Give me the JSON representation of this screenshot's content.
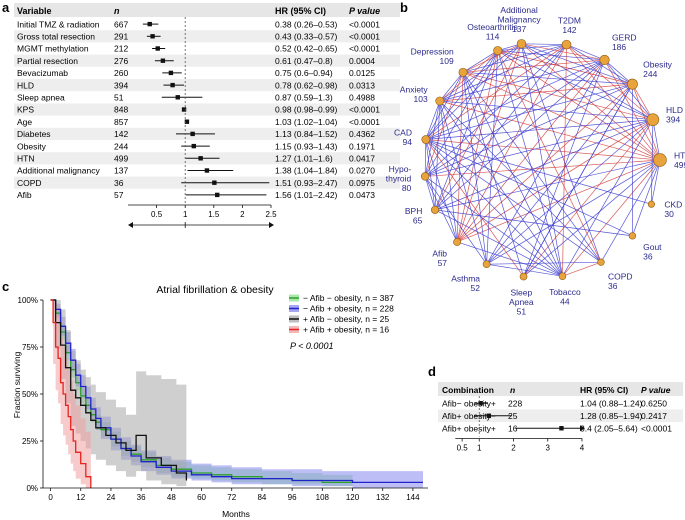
{
  "panels": {
    "a": "a",
    "b": "b",
    "c": "c",
    "d": "d"
  },
  "forest_a": {
    "headers": {
      "variable": "Variable",
      "n": "n",
      "hr": "HR (95% CI)",
      "p": "P value"
    },
    "rows": [
      {
        "variable": "Initial TMZ & radiation",
        "n": "667",
        "hr_text": "0.38 (0.26–0.53)",
        "p": "<0.0001",
        "hr": 0.38,
        "lo": 0.26,
        "hi": 0.53
      },
      {
        "variable": "Gross total resection",
        "n": "291",
        "hr_text": "0.43 (0.33–0.57)",
        "p": "<0.0001",
        "hr": 0.43,
        "lo": 0.33,
        "hi": 0.57
      },
      {
        "variable": "MGMT methylation",
        "n": "212",
        "hr_text": "0.52 (0.42–0.65)",
        "p": "<0.0001",
        "hr": 0.52,
        "lo": 0.42,
        "hi": 0.65
      },
      {
        "variable": "Partial resection",
        "n": "276",
        "hr_text": "0.61 (0.47–0.8)",
        "p": "0.0004",
        "hr": 0.61,
        "lo": 0.47,
        "hi": 0.8
      },
      {
        "variable": "Bevacizumab",
        "n": "260",
        "hr_text": "0.75 (0.6–0.94)",
        "p": "0.0125",
        "hr": 0.75,
        "lo": 0.6,
        "hi": 0.94
      },
      {
        "variable": "HLD",
        "n": "394",
        "hr_text": "0.78 (0.62–0.98)",
        "p": "0.0313",
        "hr": 0.78,
        "lo": 0.62,
        "hi": 0.98
      },
      {
        "variable": "Sleep apnea",
        "n": "51",
        "hr_text": "0.87 (0.59–1.3)",
        "p": "0.4988",
        "hr": 0.87,
        "lo": 0.59,
        "hi": 1.3
      },
      {
        "variable": "KPS",
        "n": "848",
        "hr_text": "0.98 (0.98–0.99)",
        "p": "<0.0001",
        "hr": 0.98,
        "lo": 0.98,
        "hi": 0.99
      },
      {
        "variable": "Age",
        "n": "857",
        "hr_text": "1.03 (1.02–1.04)",
        "p": "<0.0001",
        "hr": 1.03,
        "lo": 1.02,
        "hi": 1.04
      },
      {
        "variable": "Diabetes",
        "n": "142",
        "hr_text": "1.13 (0.84–1.52)",
        "p": "0.4362",
        "hr": 1.13,
        "lo": 0.84,
        "hi": 1.52
      },
      {
        "variable": "Obesity",
        "n": "244",
        "hr_text": "1.15 (0.93–1.43)",
        "p": "0.1971",
        "hr": 1.15,
        "lo": 0.93,
        "hi": 1.43
      },
      {
        "variable": "HTN",
        "n": "499",
        "hr_text": "1.27 (1.01–1.6)",
        "p": "0.0417",
        "hr": 1.27,
        "lo": 1.01,
        "hi": 1.6
      },
      {
        "variable": "Additional malignancy",
        "n": "137",
        "hr_text": "1.38 (1.04–1.84)",
        "p": "0.0270",
        "hr": 1.38,
        "lo": 1.04,
        "hi": 1.84
      },
      {
        "variable": "COPD",
        "n": "36",
        "hr_text": "1.51 (0.93–2.47)",
        "p": "0.0975",
        "hr": 1.51,
        "lo": 0.93,
        "hi": 2.47
      },
      {
        "variable": "Afib",
        "n": "57",
        "hr_text": "1.56 (1.01–2.42)",
        "p": "0.0473",
        "hr": 1.56,
        "lo": 1.01,
        "hi": 2.42
      }
    ],
    "ticks": [
      "0.5",
      "1",
      "1.5",
      "2",
      "2.5"
    ]
  },
  "network_b": {
    "nodes": [
      {
        "label": "Additional Malignancy",
        "lines": [
          "Additional",
          "Malignancy",
          "137"
        ],
        "n": 137
      },
      {
        "label": "T2DM",
        "lines": [
          "T2DM",
          "142"
        ],
        "n": 142
      },
      {
        "label": "GERD",
        "lines": [
          "GERD",
          "186"
        ],
        "n": 186
      },
      {
        "label": "Obesity",
        "lines": [
          "Obesity",
          "244"
        ],
        "n": 244
      },
      {
        "label": "HLD",
        "lines": [
          "HLD",
          "394"
        ],
        "n": 394
      },
      {
        "label": "HTN",
        "lines": [
          "HTN",
          "499"
        ],
        "n": 499
      },
      {
        "label": "CKD",
        "lines": [
          "CKD",
          "30"
        ],
        "n": 30
      },
      {
        "label": "Gout",
        "lines": [
          "Gout",
          "36"
        ],
        "n": 36
      },
      {
        "label": "COPD",
        "lines": [
          "COPD",
          "36"
        ],
        "n": 36
      },
      {
        "label": "Tobacco",
        "lines": [
          "Tobacco",
          "44"
        ],
        "n": 44
      },
      {
        "label": "Sleep Apnea",
        "lines": [
          "Sleep",
          "Apnea",
          "51"
        ],
        "n": 51
      },
      {
        "label": "Asthma",
        "lines": [
          "Asthma",
          "52"
        ],
        "n": 52
      },
      {
        "label": "Afib",
        "lines": [
          "Afib",
          "57"
        ],
        "n": 57
      },
      {
        "label": "BPH",
        "lines": [
          "BPH",
          "65"
        ],
        "n": 65
      },
      {
        "label": "Hypothyroid",
        "lines": [
          "Hypo-",
          "thyroid",
          "80"
        ],
        "n": 80
      },
      {
        "label": "CAD",
        "lines": [
          "CAD",
          "94"
        ],
        "n": 94
      },
      {
        "label": "Anxiety",
        "lines": [
          "Anxiety",
          "103"
        ],
        "n": 103
      },
      {
        "label": "Depression",
        "lines": [
          "Depression",
          "109"
        ],
        "n": 109
      },
      {
        "label": "Osteoarthritis",
        "lines": [
          "Osteoarthritis",
          "114"
        ],
        "n": 114
      }
    ],
    "colors": {
      "node": "#e8a33c",
      "label": "#2b2a8c",
      "edge_blue": "#3a3ad0",
      "edge_red": "#d23a3a"
    }
  },
  "chart_data": [
    {
      "type": "forest",
      "panel": "a",
      "xlim": [
        0,
        2.5
      ],
      "reference": 1,
      "note": "see forest_a.rows for the HR values"
    },
    {
      "type": "line",
      "panel": "c",
      "title": "Atrial fibrillation & obesity",
      "xlabel": "Months",
      "ylabel": "Fraction surviving",
      "x_ticks": [
        0,
        12,
        24,
        36,
        48,
        60,
        72,
        84,
        96,
        108,
        120,
        132,
        144
      ],
      "y_ticks": [
        "0%",
        "25%",
        "50%",
        "75%",
        "100%"
      ],
      "xlim": [
        -3,
        150
      ],
      "ylim": [
        0,
        1
      ],
      "pvalue": "P < 0.0001",
      "series": [
        {
          "name": "− Afib − obesity, n = 387",
          "color": "#2ca02c",
          "band": "#8fdf8f",
          "x": [
            0,
            2,
            4,
            6,
            8,
            10,
            12,
            14,
            16,
            18,
            20,
            24,
            28,
            32,
            36,
            42,
            48,
            56,
            64,
            72,
            84,
            96,
            108,
            120
          ],
          "y": [
            1.0,
            0.93,
            0.83,
            0.72,
            0.63,
            0.56,
            0.49,
            0.44,
            0.39,
            0.35,
            0.31,
            0.26,
            0.21,
            0.18,
            0.15,
            0.12,
            0.1,
            0.08,
            0.07,
            0.06,
            0.05,
            0.04,
            0.03,
            0.03
          ],
          "lo": [
            1.0,
            0.9,
            0.79,
            0.68,
            0.59,
            0.52,
            0.45,
            0.4,
            0.35,
            0.31,
            0.27,
            0.22,
            0.17,
            0.14,
            0.11,
            0.08,
            0.06,
            0.05,
            0.04,
            0.03,
            0.02,
            0.02,
            0.01,
            0.01
          ],
          "hi": [
            1.0,
            0.96,
            0.87,
            0.76,
            0.67,
            0.6,
            0.53,
            0.48,
            0.43,
            0.39,
            0.35,
            0.3,
            0.25,
            0.22,
            0.19,
            0.16,
            0.14,
            0.12,
            0.11,
            0.1,
            0.09,
            0.08,
            0.07,
            0.07
          ]
        },
        {
          "name": "− Afib + obesity, n = 228",
          "color": "#2222cc",
          "band": "#8888ee",
          "x": [
            0,
            2,
            4,
            6,
            8,
            10,
            12,
            14,
            16,
            18,
            20,
            24,
            28,
            32,
            36,
            42,
            48,
            56,
            64,
            72,
            84,
            96,
            108,
            120,
            132,
            148
          ],
          "y": [
            1.0,
            0.95,
            0.86,
            0.77,
            0.68,
            0.6,
            0.54,
            0.48,
            0.42,
            0.37,
            0.32,
            0.26,
            0.21,
            0.17,
            0.14,
            0.11,
            0.09,
            0.07,
            0.06,
            0.05,
            0.05,
            0.04,
            0.04,
            0.03,
            0.03,
            0.03
          ],
          "lo": [
            1.0,
            0.91,
            0.81,
            0.71,
            0.62,
            0.54,
            0.48,
            0.42,
            0.36,
            0.31,
            0.26,
            0.2,
            0.15,
            0.12,
            0.09,
            0.07,
            0.05,
            0.04,
            0.03,
            0.02,
            0.02,
            0.01,
            0.01,
            0.0,
            0.0,
            0.0
          ],
          "hi": [
            1.0,
            0.98,
            0.91,
            0.83,
            0.74,
            0.66,
            0.6,
            0.54,
            0.48,
            0.43,
            0.38,
            0.32,
            0.27,
            0.23,
            0.2,
            0.17,
            0.15,
            0.13,
            0.12,
            0.11,
            0.1,
            0.1,
            0.09,
            0.09,
            0.09,
            0.09
          ]
        },
        {
          "name": "+ Afib − obesity, n = 25",
          "color": "#111111",
          "band": "#a8a8a8",
          "x": [
            0,
            2,
            4,
            6,
            8,
            10,
            12,
            14,
            16,
            18,
            22,
            26,
            30,
            34,
            38,
            44,
            50,
            54
          ],
          "y": [
            1.0,
            0.88,
            0.76,
            0.64,
            0.52,
            0.48,
            0.44,
            0.4,
            0.36,
            0.32,
            0.28,
            0.24,
            0.2,
            0.28,
            0.16,
            0.12,
            0.08,
            0.04
          ],
          "lo": [
            1.0,
            0.74,
            0.58,
            0.45,
            0.33,
            0.29,
            0.25,
            0.21,
            0.18,
            0.15,
            0.12,
            0.09,
            0.06,
            0.09,
            0.04,
            0.02,
            0.01,
            0.0
          ],
          "hi": [
            1.0,
            1.0,
            0.95,
            0.84,
            0.73,
            0.68,
            0.63,
            0.59,
            0.55,
            0.51,
            0.47,
            0.43,
            0.39,
            0.62,
            0.6,
            0.58,
            0.55,
            0.52
          ]
        },
        {
          "name": "+ Afib + obesity, n = 16",
          "color": "#e8231e",
          "band": "#f0a0a0",
          "x": [
            0,
            1,
            2,
            3,
            4,
            5,
            6,
            7,
            8,
            9,
            10,
            11,
            12,
            13,
            14,
            15,
            16
          ],
          "y": [
            1.0,
            0.88,
            0.75,
            0.69,
            0.56,
            0.5,
            0.44,
            0.38,
            0.31,
            0.25,
            0.19,
            0.19,
            0.13,
            0.13,
            0.06,
            0.06,
            0.0
          ],
          "lo": [
            1.0,
            0.66,
            0.52,
            0.45,
            0.34,
            0.28,
            0.23,
            0.18,
            0.13,
            0.09,
            0.05,
            0.05,
            0.02,
            0.02,
            0.0,
            0.0,
            0.0
          ],
          "hi": [
            1.0,
            1.0,
            0.98,
            0.92,
            0.8,
            0.75,
            0.69,
            0.63,
            0.57,
            0.5,
            0.44,
            0.44,
            0.37,
            0.37,
            0.3,
            0.3,
            0.26
          ]
        }
      ]
    },
    {
      "type": "forest",
      "panel": "d",
      "xlim": [
        0,
        4
      ],
      "reference": 1
    }
  ],
  "forest_d": {
    "headers": {
      "variable": "Combination",
      "n": "n",
      "hr": "HR (95% CI)",
      "p": "P value"
    },
    "rows": [
      {
        "variable": "Afib− obesity+",
        "n": "228",
        "hr_text": "1.04 (0.88–1.24)",
        "p": "0.6250",
        "hr": 1.04,
        "lo": 0.88,
        "hi": 1.24
      },
      {
        "variable": "Afib+ obesity−",
        "n": "25",
        "hr_text": "1.28 (0.85–1.94)",
        "p": "0.2417",
        "hr": 1.28,
        "lo": 0.85,
        "hi": 1.94
      },
      {
        "variable": "Afib+ obesity+",
        "n": "16",
        "hr_text": "3.4 (2.05–5.64)",
        "p": "<0.0001",
        "hr": 3.4,
        "lo": 2.05,
        "hi": 5.64
      }
    ],
    "ticks": [
      "0.5",
      "1",
      "2",
      "3",
      "4"
    ],
    "tick_values": [
      0.5,
      1,
      2,
      3,
      4
    ]
  }
}
